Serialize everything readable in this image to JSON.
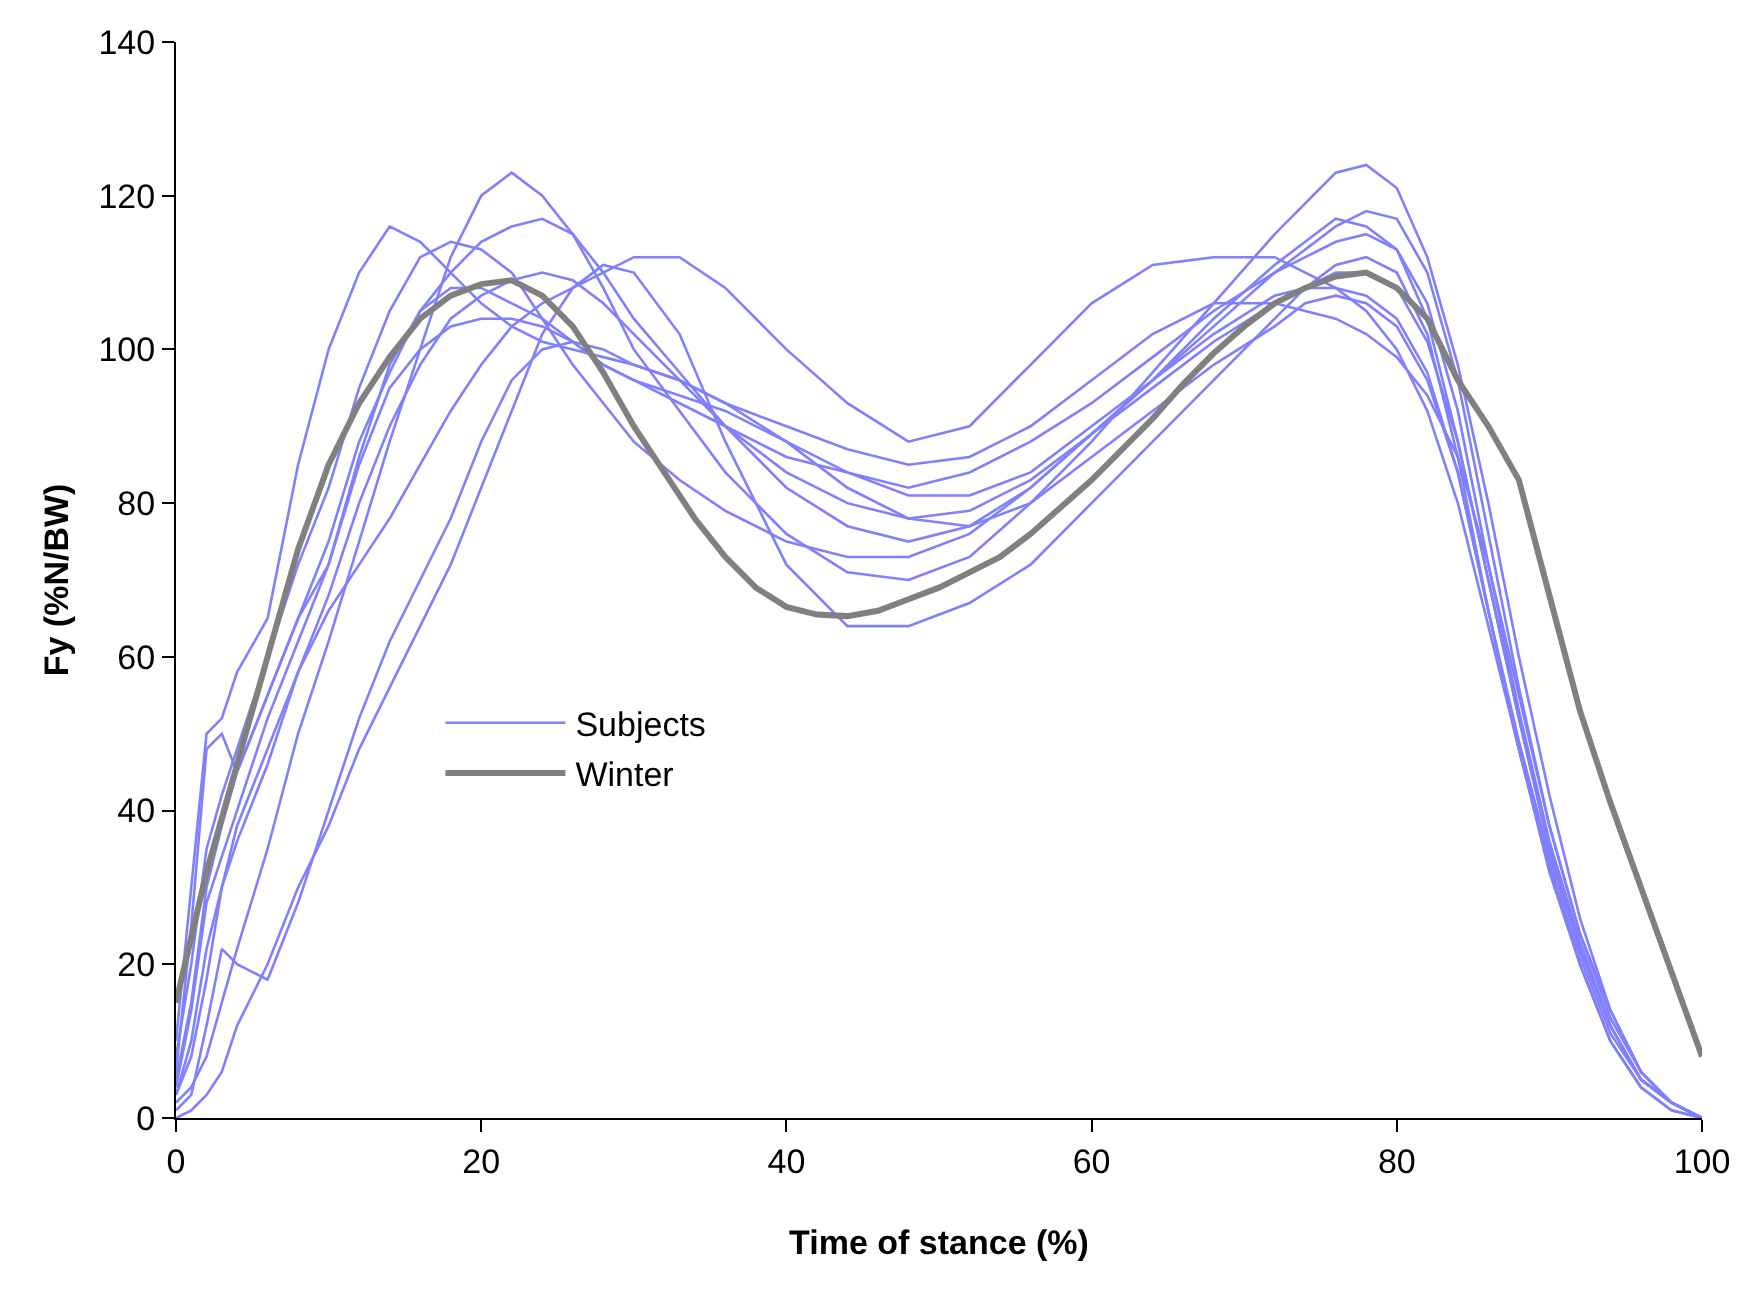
{
  "chart_data": {
    "type": "line",
    "xlabel": "Time of stance (%)",
    "ylabel": "Fy (%N/BW)",
    "xlim": [
      0,
      100
    ],
    "xticks": [
      0,
      20,
      40,
      60,
      80,
      100
    ],
    "ylim": [
      0,
      140
    ],
    "yticks": [
      0,
      20,
      40,
      60,
      80,
      100,
      120,
      140
    ],
    "legend": "left",
    "marker": "none",
    "line_style": "solid",
    "x": [
      0,
      1,
      2,
      3,
      4,
      6,
      8,
      10,
      12,
      14,
      16,
      18,
      20,
      22,
      24,
      26,
      28,
      30,
      33,
      36,
      40,
      44,
      48,
      52,
      56,
      60,
      64,
      68,
      72,
      74,
      76,
      78,
      80,
      82,
      84,
      86,
      88,
      90,
      92,
      94,
      96,
      98,
      100
    ],
    "series": [
      {
        "name": "Subjects",
        "color": "#8080ff",
        "values": [
          10,
          30,
          50,
          52,
          58,
          65,
          85,
          100,
          110,
          116,
          114,
          110,
          106,
          103,
          101,
          100,
          99,
          98,
          96,
          93,
          90,
          87,
          85,
          86,
          90,
          96,
          102,
          106,
          106,
          105,
          104,
          102,
          99,
          94,
          86,
          72,
          55,
          38,
          24,
          14,
          6,
          2,
          0
        ]
      },
      {
        "color": "#8080ff",
        "values": [
          2,
          4,
          8,
          15,
          22,
          35,
          50,
          62,
          75,
          88,
          100,
          112,
          120,
          123,
          120,
          115,
          108,
          100,
          92,
          84,
          76,
          71,
          70,
          73,
          80,
          88,
          97,
          106,
          115,
          119,
          123,
          124,
          121,
          112,
          98,
          80,
          60,
          42,
          26,
          14,
          6,
          2,
          0
        ]
      },
      {
        "color": "#8080ff",
        "values": [
          5,
          15,
          30,
          38,
          45,
          55,
          65,
          75,
          88,
          97,
          105,
          110,
          114,
          116,
          117,
          115,
          110,
          104,
          97,
          90,
          82,
          77,
          75,
          77,
          82,
          89,
          96,
          103,
          110,
          113,
          116,
          118,
          117,
          110,
          96,
          76,
          56,
          38,
          24,
          13,
          6,
          2,
          0
        ]
      },
      {
        "color": "#8080ff",
        "values": [
          3,
          8,
          18,
          30,
          38,
          48,
          58,
          66,
          72,
          78,
          85,
          92,
          98,
          103,
          106,
          108,
          110,
          112,
          112,
          108,
          100,
          93,
          88,
          90,
          98,
          106,
          111,
          112,
          112,
          110,
          108,
          105,
          100,
          92,
          80,
          64,
          48,
          33,
          21,
          11,
          5,
          2,
          0
        ]
      },
      {
        "color": "#8080ff",
        "values": [
          8,
          20,
          35,
          42,
          48,
          60,
          72,
          82,
          95,
          105,
          112,
          114,
          113,
          110,
          104,
          98,
          93,
          88,
          83,
          79,
          75,
          73,
          73,
          76,
          82,
          89,
          96,
          104,
          111,
          114,
          117,
          116,
          113,
          104,
          88,
          70,
          52,
          35,
          22,
          12,
          5,
          2,
          0
        ]
      },
      {
        "color": "#8080ff",
        "values": [
          0,
          1,
          3,
          6,
          12,
          20,
          30,
          38,
          48,
          56,
          64,
          72,
          82,
          92,
          102,
          108,
          111,
          110,
          102,
          88,
          72,
          64,
          64,
          67,
          72,
          80,
          88,
          96,
          104,
          108,
          111,
          112,
          110,
          102,
          86,
          66,
          48,
          32,
          20,
          10,
          4,
          1,
          0
        ]
      },
      {
        "color": "#8080ff",
        "values": [
          6,
          25,
          48,
          50,
          45,
          55,
          65,
          72,
          85,
          95,
          100,
          103,
          104,
          104,
          103,
          101,
          98,
          96,
          94,
          92,
          88,
          84,
          81,
          81,
          84,
          90,
          96,
          102,
          107,
          108,
          108,
          107,
          104,
          97,
          84,
          66,
          48,
          33,
          20,
          10,
          4,
          1,
          0
        ]
      },
      {
        "color": "#8080ff",
        "values": [
          1,
          3,
          12,
          22,
          20,
          18,
          28,
          40,
          52,
          62,
          70,
          78,
          88,
          96,
          100,
          101,
          100,
          98,
          96,
          93,
          88,
          82,
          78,
          77,
          80,
          86,
          92,
          98,
          103,
          106,
          107,
          106,
          103,
          96,
          84,
          66,
          49,
          34,
          22,
          12,
          5,
          2,
          0
        ]
      },
      {
        "color": "#8080ff",
        "values": [
          4,
          14,
          28,
          34,
          40,
          52,
          62,
          72,
          86,
          98,
          105,
          108,
          108,
          106,
          104,
          101,
          98,
          96,
          93,
          90,
          86,
          84,
          82,
          84,
          88,
          93,
          99,
          105,
          110,
          112,
          114,
          115,
          113,
          106,
          92,
          72,
          53,
          36,
          23,
          12,
          5,
          2,
          0
        ]
      },
      {
        "color": "#8080ff",
        "values": [
          3,
          10,
          22,
          30,
          36,
          46,
          58,
          68,
          80,
          90,
          98,
          104,
          107,
          109,
          110,
          109,
          106,
          102,
          96,
          90,
          84,
          80,
          78,
          79,
          83,
          89,
          95,
          101,
          106,
          108,
          110,
          110,
          108,
          101,
          88,
          70,
          52,
          35,
          22,
          12,
          5,
          2,
          0
        ]
      },
      {
        "name": "Winter",
        "color": "#808080",
        "x": [
          0,
          2,
          4,
          6,
          8,
          10,
          12,
          14,
          16,
          18,
          20,
          22,
          24,
          26,
          28,
          30,
          32,
          34,
          36,
          38,
          40,
          42,
          44,
          46,
          48,
          50,
          52,
          54,
          56,
          58,
          60,
          62,
          64,
          66,
          68,
          70,
          72,
          74,
          76,
          78,
          80,
          82,
          84,
          86,
          88,
          90,
          92,
          94,
          96,
          98,
          100
        ],
        "values": [
          15,
          32,
          46,
          60,
          74,
          85,
          93,
          99,
          104,
          107,
          108.5,
          109,
          107,
          103,
          97,
          90,
          84,
          78,
          73,
          69,
          66.5,
          65.5,
          65.3,
          66,
          67.5,
          69,
          71,
          73,
          76,
          79.5,
          83,
          87,
          91,
          95.5,
          99.5,
          103,
          106,
          108,
          109.5,
          110,
          108,
          104,
          96,
          90,
          83,
          68,
          53,
          41,
          30,
          19,
          8
        ]
      }
    ]
  }
}
